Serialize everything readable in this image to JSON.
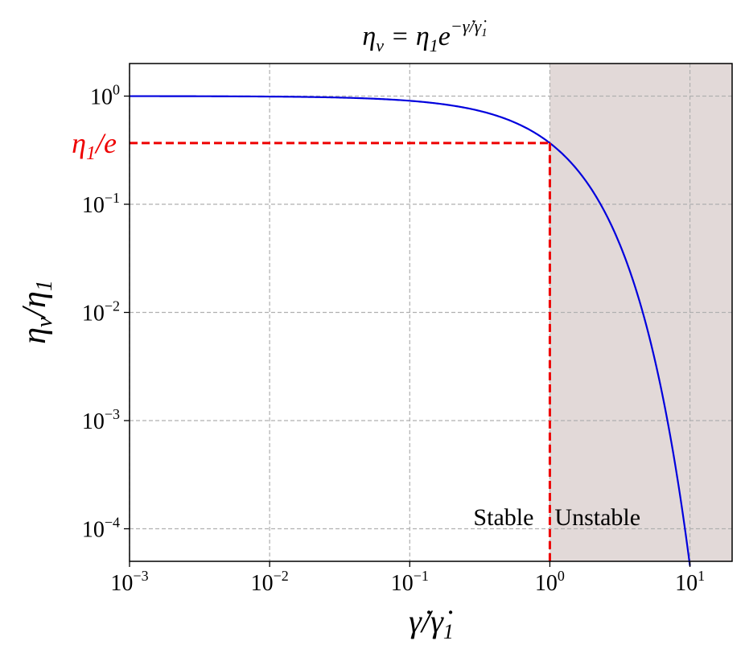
{
  "chart_data": {
    "type": "line",
    "title": "η_v = η₁e^(−γ̇/γ̇₁)",
    "title_parts": {
      "lhs": "η",
      "lhs_sub": "v",
      "eq": " = η",
      "eq_sub": "1",
      "e": "e",
      "exp": "−γ̇/γ̇",
      "exp_sub": "1"
    },
    "xlabel": "γ̇/γ̇₁",
    "xlabel_parts": {
      "num": "γ̇",
      "slash": "/",
      "den": "γ̇",
      "den_sub": "1"
    },
    "ylabel": "η_v/η₁",
    "ylabel_parts": {
      "num": "η",
      "num_sub": "v",
      "slash": "/",
      "den": "η",
      "den_sub": "1"
    },
    "x_scale": "log",
    "y_scale": "log",
    "xlim": [
      0.001,
      20
    ],
    "ylim": [
      5e-05,
      2
    ],
    "grid": true,
    "x_ticks": [
      {
        "value": 0.001,
        "base": "10",
        "exp": "−3"
      },
      {
        "value": 0.01,
        "base": "10",
        "exp": "−2"
      },
      {
        "value": 0.1,
        "base": "10",
        "exp": "−1"
      },
      {
        "value": 1,
        "base": "10",
        "exp": "0"
      },
      {
        "value": 10,
        "base": "10",
        "exp": "1"
      }
    ],
    "y_ticks": [
      {
        "value": 1,
        "base": "10",
        "exp": "0"
      },
      {
        "value": 0.1,
        "base": "10",
        "exp": "−1"
      },
      {
        "value": 0.01,
        "base": "10",
        "exp": "−2"
      },
      {
        "value": 0.001,
        "base": "10",
        "exp": "−3"
      },
      {
        "value": 0.0001,
        "base": "10",
        "exp": "−4"
      }
    ],
    "series": [
      {
        "function": "exp(-x)",
        "color": "#0000dd",
        "x_range": [
          0.001,
          10
        ]
      }
    ],
    "annotations": {
      "marker_point": {
        "x": 1,
        "y": 0.36788
      },
      "marker_label": "η₁/e",
      "marker_label_parts": {
        "eta": "η",
        "sub": "1",
        "rest": "/e"
      },
      "marker_color": "#ee0000",
      "shaded_region": {
        "x_start": 1,
        "x_end": 20,
        "color": "#e2d9d8"
      },
      "region_labels": [
        {
          "text": "Stable",
          "side": "left",
          "y": 0.00013
        },
        {
          "text": "Unstable",
          "side": "right",
          "y": 0.00013
        }
      ]
    }
  }
}
